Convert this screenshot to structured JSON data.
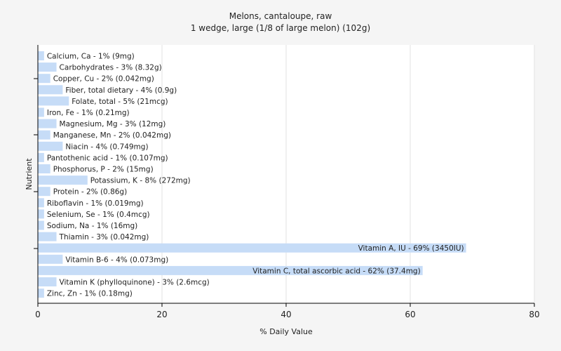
{
  "chart_data": {
    "type": "bar",
    "orientation": "horizontal",
    "title": "Melons, cantaloupe, raw",
    "subtitle": "1 wedge, large (1/8 of large melon) (102g)",
    "xlabel": "% Daily Value",
    "ylabel": "Nutrient",
    "xlim": [
      0,
      80
    ],
    "xticks": [
      0,
      20,
      40,
      60,
      80
    ],
    "grid": true,
    "legend": "none",
    "colors": {
      "bar": "#c6dcf7",
      "background": "#f5f5f5",
      "plot_bg": "#ffffff",
      "grid": "#e2e2e2",
      "axis": "#000000"
    },
    "categories": [
      "Calcium, Ca",
      "Carbohydrates",
      "Copper, Cu",
      "Fiber, total dietary",
      "Folate, total",
      "Iron, Fe",
      "Magnesium, Mg",
      "Manganese, Mn",
      "Niacin",
      "Pantothenic acid",
      "Phosphorus, P",
      "Potassium, K",
      "Protein",
      "Riboflavin",
      "Selenium, Se",
      "Sodium, Na",
      "Thiamin",
      "Vitamin A, IU",
      "Vitamin B-6",
      "Vitamin C, total ascorbic acid",
      "Vitamin K (phylloquinone)",
      "Zinc, Zn"
    ],
    "values": [
      1,
      3,
      2,
      4,
      5,
      1,
      3,
      2,
      4,
      1,
      2,
      8,
      2,
      1,
      1,
      1,
      3,
      69,
      4,
      62,
      3,
      1
    ],
    "labels": [
      "Calcium, Ca - 1% (9mg)",
      "Carbohydrates - 3% (8.32g)",
      "Copper, Cu - 2% (0.042mg)",
      "Fiber, total dietary - 4% (0.9g)",
      "Folate, total - 5% (21mcg)",
      "Iron, Fe - 1% (0.21mg)",
      "Magnesium, Mg - 3% (12mg)",
      "Manganese, Mn - 2% (0.042mg)",
      "Niacin - 4% (0.749mg)",
      "Pantothenic acid - 1% (0.107mg)",
      "Phosphorus, P - 2% (15mg)",
      "Potassium, K - 8% (272mg)",
      "Protein - 2% (0.86g)",
      "Riboflavin - 1% (0.019mg)",
      "Selenium, Se - 1% (0.4mcg)",
      "Sodium, Na - 1% (16mg)",
      "Thiamin - 3% (0.042mg)",
      "Vitamin A, IU - 69% (3450IU)",
      "Vitamin B-6 - 4% (0.073mg)",
      "Vitamin C, total ascorbic acid - 62% (37.4mg)",
      "Vitamin K (phylloquinone) - 3% (2.6mcg)",
      "Zinc, Zn - 1% (0.18mg)"
    ]
  }
}
